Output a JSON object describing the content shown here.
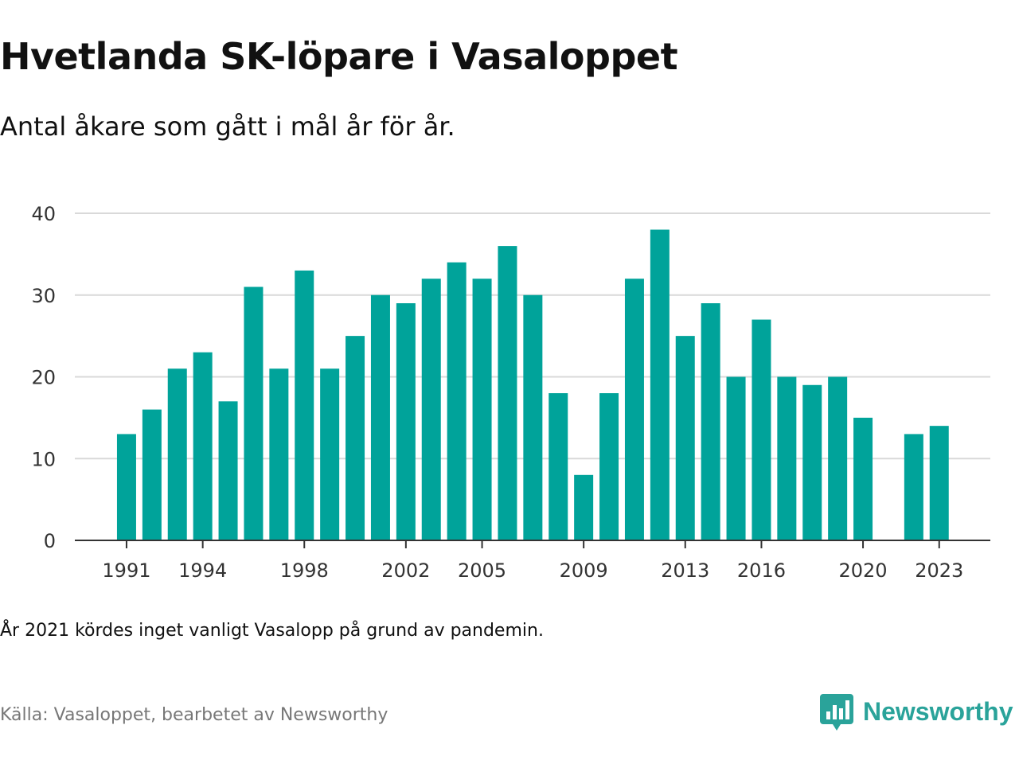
{
  "header": {
    "title": "Hvetlanda SK-löpare i Vasaloppet",
    "subtitle": "Antal åkare som gått i mål år för år."
  },
  "footer": {
    "note": "År 2021 kördes inget vanligt Vasalopp på grund av pandemin.",
    "source": "Källa: Vasaloppet, bearbetet av Newsworthy",
    "brand": "Newsworthy"
  },
  "colors": {
    "bar": "#00a39a",
    "brand": "#2aa39a",
    "grid": "#d9d9d9",
    "axis": "#333333"
  },
  "icons": {
    "brand_icon": "newsworthy-logo-icon"
  },
  "chart_data": {
    "type": "bar",
    "title": "Hvetlanda SK-löpare i Vasaloppet",
    "subtitle": "Antal åkare som gått i mål år för år.",
    "xlabel": "",
    "ylabel": "",
    "ylim": [
      0,
      40
    ],
    "yticks": [
      0,
      10,
      20,
      30,
      40
    ],
    "xticks": [
      1991,
      1994,
      1998,
      2002,
      2005,
      2009,
      2013,
      2016,
      2020,
      2023
    ],
    "grid": true,
    "x": [
      1991,
      1992,
      1993,
      1994,
      1995,
      1996,
      1997,
      1998,
      1999,
      2000,
      2001,
      2002,
      2003,
      2004,
      2005,
      2006,
      2007,
      2008,
      2009,
      2010,
      2011,
      2012,
      2013,
      2014,
      2015,
      2016,
      2017,
      2018,
      2019,
      2020,
      2021,
      2022,
      2023
    ],
    "values": [
      13,
      16,
      21,
      23,
      17,
      31,
      21,
      33,
      21,
      25,
      30,
      29,
      32,
      34,
      32,
      36,
      30,
      18,
      8,
      18,
      32,
      38,
      25,
      29,
      20,
      27,
      20,
      19,
      20,
      15,
      null,
      13,
      14
    ]
  }
}
